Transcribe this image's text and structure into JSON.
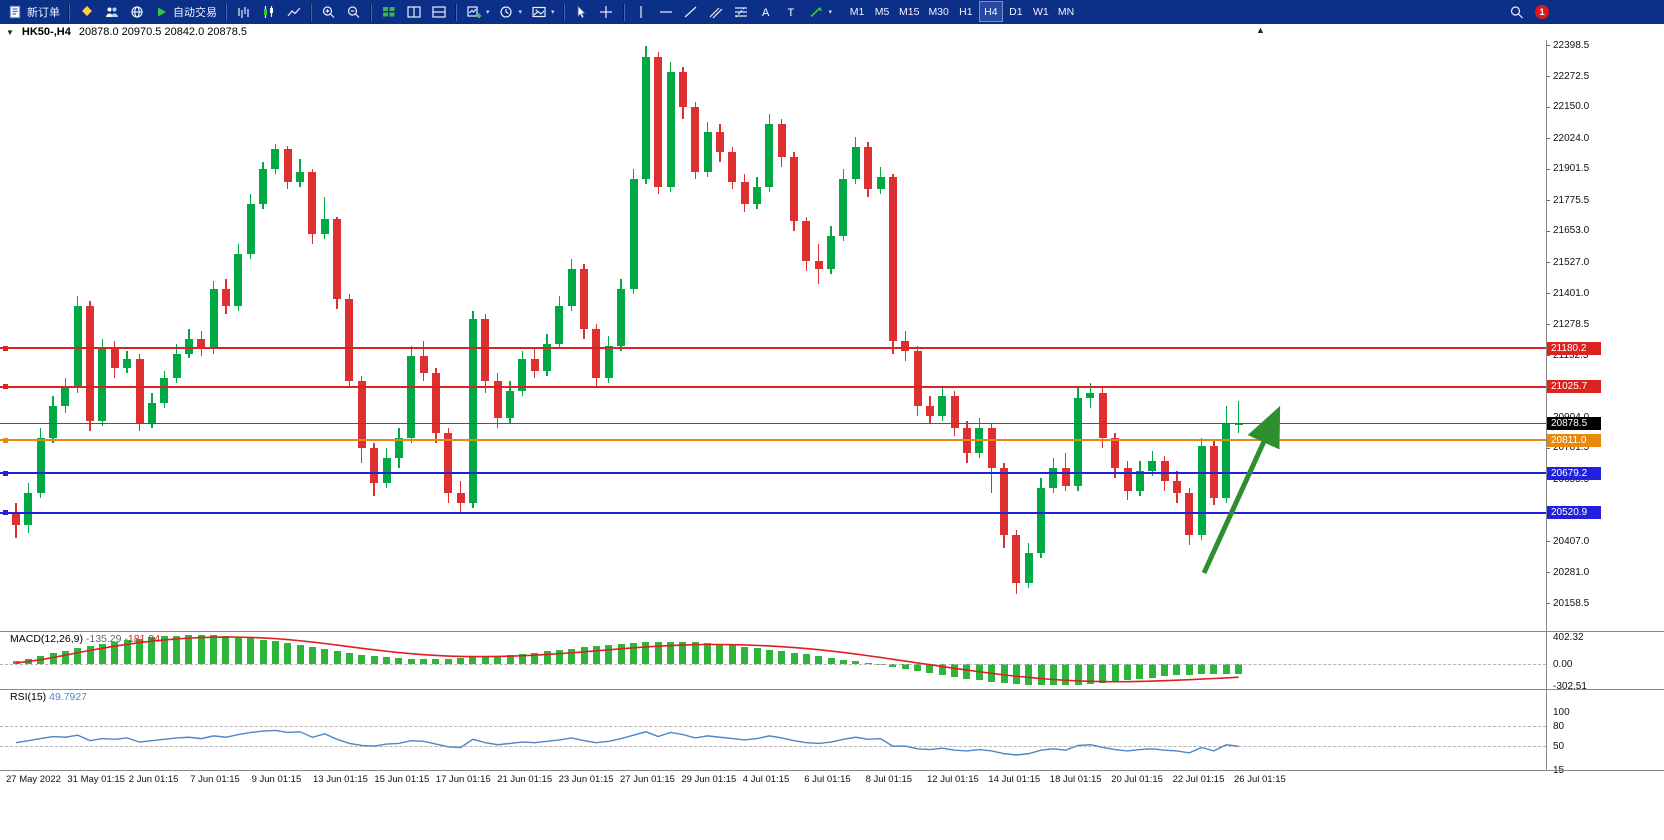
{
  "toolbar": {
    "new_order_label": "新订单",
    "auto_trading_label": "自动交易",
    "timeframes": [
      "M1",
      "M5",
      "M15",
      "M30",
      "H1",
      "H4",
      "D1",
      "W1",
      "MN"
    ],
    "active_timeframe": "H4",
    "notification_count": "1"
  },
  "chart_header": {
    "symbol": "HK50-,H4",
    "ohlc": "20878.0 20970.5 20842.0 20878.5"
  },
  "chart_data": {
    "type": "candlestick",
    "symbol": "HK50-",
    "timeframe": "H4",
    "price_axis": {
      "min": 20158.5,
      "max": 22398.5,
      "ticks": [
        "22398.5",
        "22272.5",
        "22150.0",
        "22024.0",
        "21901.5",
        "21775.5",
        "21653.0",
        "21527.0",
        "21401.0",
        "21278.5",
        "21152.5",
        "20904.0",
        "20781.5",
        "20655.5",
        "20407.0",
        "20281.0",
        "20158.5"
      ]
    },
    "horizontal_lines": [
      {
        "price": 21180.2,
        "label": "21180.2",
        "color": "#dd2222",
        "badge_color": "#dd2222",
        "style": "solid"
      },
      {
        "price": 21025.7,
        "label": "21025.7",
        "color": "#dd2222",
        "badge_color": "#dd2222",
        "style": "solid"
      },
      {
        "price": 20878.5,
        "label": "20878.5",
        "color": "#555555",
        "badge_color": "#000000",
        "style": "bid"
      },
      {
        "price": 20811.0,
        "label": "20811.0",
        "color": "#e8880c",
        "badge_color": "#e8880c",
        "style": "solid"
      },
      {
        "price": 20679.2,
        "label": "20679.2",
        "color": "#2020dd",
        "badge_color": "#2020dd",
        "style": "solid"
      },
      {
        "price": 20520.9,
        "label": "20520.9",
        "color": "#2020dd",
        "badge_color": "#2020dd",
        "style": "solid"
      }
    ],
    "candles": [
      [
        20520,
        20560,
        20420,
        20470
      ],
      [
        20470,
        20640,
        20440,
        20600
      ],
      [
        20600,
        20860,
        20580,
        20820
      ],
      [
        20820,
        20990,
        20800,
        20950
      ],
      [
        20950,
        21060,
        20920,
        21020
      ],
      [
        21020,
        21390,
        21000,
        21350
      ],
      [
        21350,
        21370,
        20850,
        20890
      ],
      [
        20890,
        21220,
        20870,
        21180
      ],
      [
        21180,
        21210,
        21060,
        21100
      ],
      [
        21100,
        21170,
        21080,
        21140
      ],
      [
        21140,
        21160,
        20850,
        20880
      ],
      [
        20880,
        21000,
        20860,
        20960
      ],
      [
        20960,
        21090,
        20940,
        21060
      ],
      [
        21060,
        21200,
        21040,
        21160
      ],
      [
        21160,
        21260,
        21140,
        21220
      ],
      [
        21220,
        21250,
        21150,
        21180
      ],
      [
        21180,
        21450,
        21160,
        21420
      ],
      [
        21420,
        21460,
        21320,
        21350
      ],
      [
        21350,
        21600,
        21330,
        21560
      ],
      [
        21560,
        21800,
        21540,
        21760
      ],
      [
        21760,
        21930,
        21740,
        21900
      ],
      [
        21900,
        22000,
        21880,
        21980
      ],
      [
        21980,
        21995,
        21820,
        21850
      ],
      [
        21850,
        21940,
        21830,
        21890
      ],
      [
        21890,
        21900,
        21600,
        21640
      ],
      [
        21640,
        21790,
        21620,
        21700
      ],
      [
        21700,
        21710,
        21340,
        21380
      ],
      [
        21380,
        21400,
        21020,
        21050
      ],
      [
        21050,
        21070,
        20720,
        20780
      ],
      [
        20780,
        20800,
        20590,
        20640
      ],
      [
        20640,
        20780,
        20620,
        20740
      ],
      [
        20740,
        20860,
        20700,
        20820
      ],
      [
        20820,
        21190,
        20800,
        21150
      ],
      [
        21150,
        21210,
        21050,
        21080
      ],
      [
        21080,
        21100,
        20800,
        20840
      ],
      [
        20840,
        20860,
        20560,
        20600
      ],
      [
        20600,
        20650,
        20520,
        20560
      ],
      [
        20560,
        21330,
        20540,
        21300
      ],
      [
        21300,
        21320,
        21000,
        21050
      ],
      [
        21050,
        21080,
        20860,
        20900
      ],
      [
        20900,
        21050,
        20880,
        21010
      ],
      [
        21010,
        21170,
        20990,
        21140
      ],
      [
        21140,
        21180,
        21060,
        21090
      ],
      [
        21090,
        21240,
        21070,
        21200
      ],
      [
        21200,
        21390,
        21180,
        21350
      ],
      [
        21350,
        21540,
        21330,
        21500
      ],
      [
        21500,
        21520,
        21220,
        21260
      ],
      [
        21260,
        21280,
        21020,
        21060
      ],
      [
        21060,
        21230,
        21040,
        21190
      ],
      [
        21190,
        21460,
        21170,
        21420
      ],
      [
        21420,
        21900,
        21400,
        21860
      ],
      [
        21860,
        22395,
        21840,
        22350
      ],
      [
        22350,
        22370,
        21800,
        21830
      ],
      [
        21830,
        22330,
        21810,
        22290
      ],
      [
        22290,
        22310,
        22100,
        22150
      ],
      [
        22150,
        22170,
        21860,
        21890
      ],
      [
        21890,
        22090,
        21870,
        22050
      ],
      [
        22050,
        22080,
        21930,
        21970
      ],
      [
        21970,
        21990,
        21820,
        21850
      ],
      [
        21850,
        21880,
        21730,
        21760
      ],
      [
        21760,
        21870,
        21740,
        21830
      ],
      [
        21830,
        22120,
        21810,
        22080
      ],
      [
        22080,
        22100,
        21910,
        21950
      ],
      [
        21950,
        21970,
        21650,
        21690
      ],
      [
        21690,
        21710,
        21490,
        21530
      ],
      [
        21530,
        21600,
        21440,
        21500
      ],
      [
        21500,
        21670,
        21480,
        21630
      ],
      [
        21630,
        21900,
        21610,
        21860
      ],
      [
        21860,
        22030,
        21840,
        21990
      ],
      [
        21990,
        22010,
        21790,
        21820
      ],
      [
        21820,
        21910,
        21800,
        21870
      ],
      [
        21870,
        21880,
        21160,
        21210
      ],
      [
        21210,
        21250,
        21130,
        21170
      ],
      [
        21170,
        21190,
        20910,
        20950
      ],
      [
        20950,
        20990,
        20880,
        20910
      ],
      [
        20910,
        21020,
        20890,
        20990
      ],
      [
        20990,
        21010,
        20830,
        20860
      ],
      [
        20860,
        20890,
        20720,
        20760
      ],
      [
        20760,
        20900,
        20740,
        20860
      ],
      [
        20860,
        20880,
        20600,
        20700
      ],
      [
        20700,
        20720,
        20380,
        20430
      ],
      [
        20430,
        20450,
        20195,
        20240
      ],
      [
        20240,
        20400,
        20220,
        20360
      ],
      [
        20360,
        20660,
        20340,
        20620
      ],
      [
        20620,
        20740,
        20600,
        20700
      ],
      [
        20700,
        20760,
        20610,
        20630
      ],
      [
        20630,
        21020,
        20610,
        20980
      ],
      [
        20980,
        21040,
        20940,
        21000
      ],
      [
        21000,
        21020,
        20780,
        20820
      ],
      [
        20820,
        20840,
        20660,
        20700
      ],
      [
        20700,
        20730,
        20570,
        20610
      ],
      [
        20610,
        20730,
        20590,
        20690
      ],
      [
        20690,
        20770,
        20670,
        20730
      ],
      [
        20730,
        20750,
        20610,
        20650
      ],
      [
        20650,
        20690,
        20560,
        20600
      ],
      [
        20600,
        20620,
        20390,
        20430
      ],
      [
        20430,
        20820,
        20410,
        20790
      ],
      [
        20790,
        20810,
        20550,
        20580
      ],
      [
        20580,
        20950,
        20560,
        20878
      ],
      [
        20878,
        20970.5,
        20842,
        20878.5
      ]
    ],
    "time_axis": [
      "27 May 2022",
      "31 May 01:15",
      "2 Jun 01:15",
      "7 Jun 01:15",
      "9 Jun 01:15",
      "13 Jun 01:15",
      "15 Jun 01:15",
      "17 Jun 01:15",
      "21 Jun 01:15",
      "23 Jun 01:15",
      "27 Jun 01:15",
      "29 Jun 01:15",
      "4 Jul 01:15",
      "6 Jul 01:15",
      "8 Jul 01:15",
      "12 Jul 01:15",
      "14 Jul 01:15",
      "18 Jul 01:15",
      "20 Jul 01:15",
      "22 Jul 01:15",
      "26 Jul 01:15"
    ],
    "annotation_arrow": {
      "color": "#2f8f2f",
      "direction": "up"
    },
    "macd": {
      "label": "MACD(12,26,9)",
      "value_main": "-135.29",
      "value_signal": "-181.94",
      "scale": [
        "402.32",
        "0.00",
        "-302.51"
      ],
      "scale_values": [
        402.32,
        0,
        -302.51
      ],
      "histogram": [
        40,
        70,
        105,
        145,
        185,
        220,
        250,
        280,
        305,
        330,
        350,
        368,
        382,
        392,
        398,
        400,
        396,
        388,
        375,
        358,
        338,
        315,
        290,
        262,
        234,
        206,
        178,
        152,
        128,
        108,
        92,
        80,
        72,
        68,
        68,
        72,
        80,
        90,
        102,
        114,
        128,
        142,
        158,
        175,
        192,
        210,
        228,
        245,
        262,
        278,
        292,
        302,
        308,
        310,
        306,
        298,
        286,
        272,
        256,
        238,
        220,
        200,
        180,
        158,
        136,
        112,
        88,
        62,
        36,
        10,
        -16,
        -44,
        -72,
        -100,
        -128,
        -154,
        -180,
        -204,
        -226,
        -246,
        -264,
        -278,
        -288,
        -294,
        -296,
        -292,
        -284,
        -272,
        -258,
        -242,
        -224,
        -206,
        -188,
        -172,
        -158,
        -148,
        -142,
        -138,
        -136,
        -135.29
      ],
      "signal": [
        15,
        35,
        60,
        90,
        122,
        155,
        188,
        218,
        246,
        272,
        295,
        315,
        332,
        346,
        357,
        365,
        370,
        372,
        371,
        367,
        360,
        350,
        337,
        321,
        303,
        283,
        261,
        239,
        217,
        196,
        176,
        158,
        142,
        129,
        118,
        110,
        105,
        102,
        102,
        104,
        108,
        114,
        122,
        132,
        143,
        155,
        168,
        182,
        196,
        210,
        223,
        235,
        246,
        255,
        262,
        267,
        269,
        269,
        267,
        263,
        257,
        249,
        239,
        227,
        213,
        197,
        179,
        159,
        137,
        114,
        90,
        65,
        40,
        15,
        -10,
        -35,
        -60,
        -84,
        -107,
        -129,
        -150,
        -169,
        -186,
        -201,
        -214,
        -225,
        -233,
        -239,
        -243,
        -245,
        -244,
        -241,
        -236,
        -230,
        -223,
        -216,
        -208,
        -200,
        -192,
        -181.94
      ]
    },
    "rsi": {
      "label": "RSI(15)",
      "value": "49.7927",
      "scale": [
        "100",
        "80",
        "50",
        "15"
      ],
      "scale_values": [
        100,
        80,
        50,
        15
      ],
      "levels": [
        80,
        50
      ],
      "values": [
        55,
        58,
        61,
        64,
        63,
        66,
        58,
        61,
        60,
        62,
        56,
        58,
        60,
        62,
        63,
        61,
        65,
        63,
        67,
        70,
        72,
        73,
        70,
        71,
        63,
        68,
        60,
        54,
        51,
        50,
        53,
        54,
        58,
        57,
        53,
        49,
        48,
        60,
        55,
        52,
        54,
        56,
        55,
        57,
        59,
        62,
        58,
        55,
        57,
        61,
        66,
        71,
        64,
        70,
        67,
        62,
        65,
        63,
        61,
        59,
        61,
        65,
        62,
        58,
        55,
        54,
        56,
        60,
        63,
        60,
        61,
        50,
        50,
        46,
        45,
        47,
        44,
        43,
        45,
        43,
        39,
        37,
        39,
        44,
        46,
        44,
        51,
        52,
        48,
        45,
        43,
        45,
        46,
        44,
        43,
        40,
        48,
        43,
        52,
        49.79
      ]
    }
  }
}
